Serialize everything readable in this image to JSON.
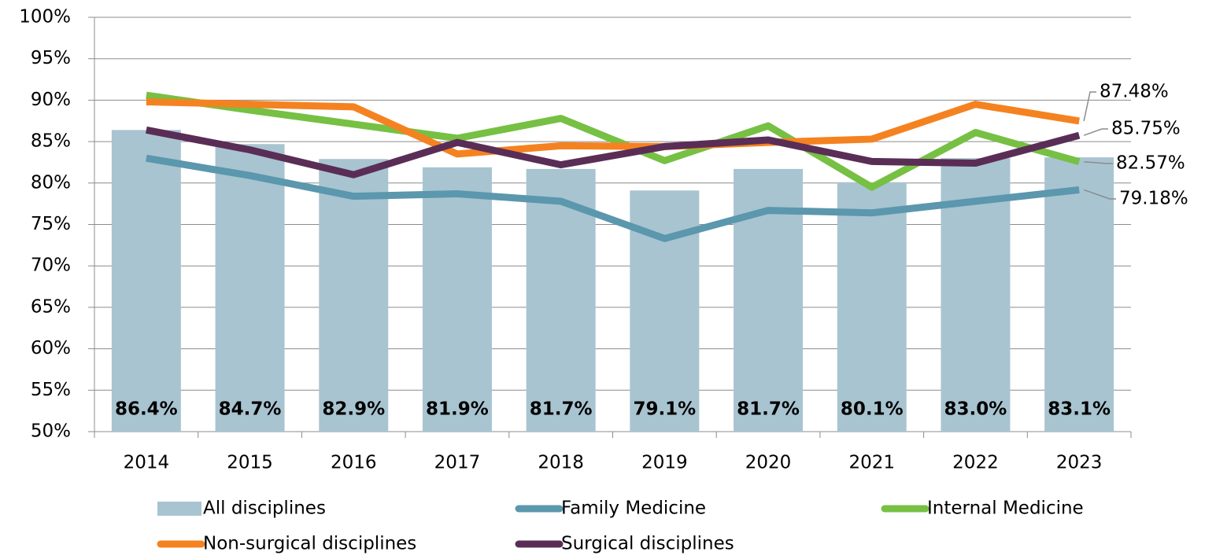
{
  "chart_data": {
    "type": "bar",
    "categories": [
      "2014",
      "2015",
      "2016",
      "2017",
      "2018",
      "2019",
      "2020",
      "2021",
      "2022",
      "2023"
    ],
    "series": [
      {
        "name": "All disciplines",
        "type": "bar",
        "color": "#a8c4d0",
        "values": [
          86.4,
          84.7,
          82.9,
          81.9,
          81.7,
          79.1,
          81.7,
          80.1,
          83.0,
          83.1
        ],
        "value_labels": [
          "86.4%",
          "84.7%",
          "82.9%",
          "81.9%",
          "81.7%",
          "79.1%",
          "81.7%",
          "80.1%",
          "83.0%",
          "83.1%"
        ]
      },
      {
        "name": "Family Medicine",
        "type": "line",
        "color": "#5b97ad",
        "values": [
          83.0,
          80.9,
          78.4,
          78.7,
          77.8,
          73.3,
          76.7,
          76.4,
          77.8,
          79.18
        ],
        "value_labels": [
          null,
          null,
          null,
          null,
          null,
          null,
          null,
          null,
          null,
          "79.18%"
        ]
      },
      {
        "name": "Internal Medicine",
        "type": "line",
        "color": "#76c043",
        "values": [
          90.6,
          88.8,
          87.1,
          85.4,
          87.8,
          82.7,
          86.9,
          79.5,
          86.1,
          82.57
        ],
        "value_labels": [
          null,
          null,
          null,
          null,
          null,
          null,
          null,
          null,
          null,
          "82.57%"
        ]
      },
      {
        "name": "Non-surgical disciplines",
        "type": "line",
        "color": "#f58220",
        "values": [
          89.8,
          89.5,
          89.2,
          83.5,
          84.5,
          84.4,
          84.9,
          85.3,
          89.5,
          87.48
        ],
        "value_labels": [
          null,
          null,
          null,
          null,
          null,
          null,
          null,
          null,
          null,
          "87.48%"
        ]
      },
      {
        "name": "Surgical disciplines",
        "type": "line",
        "color": "#5a2d56",
        "values": [
          86.4,
          84.0,
          81.0,
          84.9,
          82.2,
          84.4,
          85.2,
          82.6,
          82.4,
          85.75
        ],
        "value_labels": [
          null,
          null,
          null,
          null,
          null,
          null,
          null,
          null,
          null,
          "85.75%"
        ]
      }
    ],
    "ylim": [
      50,
      100
    ],
    "yticks": [
      {
        "value": 50,
        "label": "50%"
      },
      {
        "value": 55,
        "label": "55%"
      },
      {
        "value": 60,
        "label": "60%"
      },
      {
        "value": 65,
        "label": "65%"
      },
      {
        "value": 70,
        "label": "70%"
      },
      {
        "value": 75,
        "label": "75%"
      },
      {
        "value": 80,
        "label": "80%"
      },
      {
        "value": 85,
        "label": "85%"
      },
      {
        "value": 90,
        "label": "90%"
      },
      {
        "value": 95,
        "label": "95%"
      },
      {
        "value": 100,
        "label": "100%"
      }
    ],
    "grid": true,
    "legend": "bottom"
  }
}
